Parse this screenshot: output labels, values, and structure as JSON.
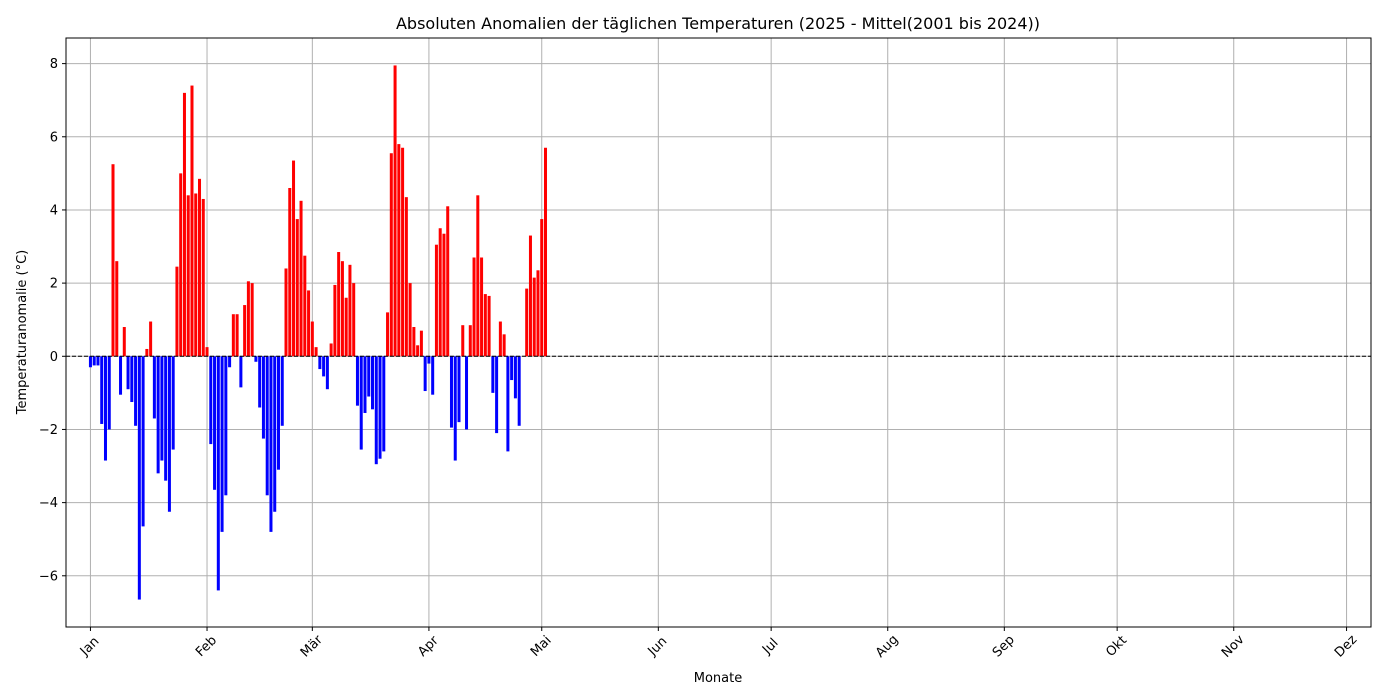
{
  "chart_data": {
    "type": "bar",
    "title": "Absoluten Anomalien der täglichen Temperaturen (2025 - Mittel(2001 bis 2024))",
    "xlabel": "Monate",
    "ylabel": "Temperaturanomalie (°C)",
    "ylim": [
      -7.4,
      8.7
    ],
    "xlim_day": [
      -6.5,
      340.5
    ],
    "yticks": [
      -6,
      -4,
      -2,
      0,
      2,
      4,
      6,
      8
    ],
    "ytick_labels": [
      "−6",
      "−4",
      "−2",
      "0",
      "2",
      "4",
      "6",
      "8"
    ],
    "month_ticks": [
      {
        "label": "Jan",
        "day": 0
      },
      {
        "label": "Feb",
        "day": 31
      },
      {
        "label": "Mär",
        "day": 59
      },
      {
        "label": "Apr",
        "day": 90
      },
      {
        "label": "Mai",
        "day": 120
      },
      {
        "label": "Jun",
        "day": 151
      },
      {
        "label": "Jul",
        "day": 181
      },
      {
        "label": "Aug",
        "day": 212
      },
      {
        "label": "Sep",
        "day": 243
      },
      {
        "label": "Okt",
        "day": 273
      },
      {
        "label": "Nov",
        "day": 304
      },
      {
        "label": "Dez",
        "day": 334
      }
    ],
    "grid": true,
    "zero_line": "dashed",
    "colors": {
      "positive": "#ff0000",
      "negative": "#0000ff"
    },
    "values": [
      -0.3,
      -0.25,
      -0.25,
      -1.85,
      -2.85,
      -2.0,
      5.25,
      2.6,
      -1.05,
      0.8,
      -0.9,
      -1.25,
      -1.9,
      -6.65,
      -4.65,
      0.2,
      0.95,
      -1.7,
      -3.2,
      -2.85,
      -3.4,
      -4.25,
      -2.55,
      2.45,
      5.0,
      7.2,
      4.4,
      7.4,
      4.45,
      4.85,
      4.3,
      0.25,
      -2.4,
      -3.65,
      -6.4,
      -4.8,
      -3.8,
      -0.3,
      1.15,
      1.15,
      -0.85,
      1.4,
      2.05,
      2.0,
      -0.15,
      -1.4,
      -2.25,
      -3.8,
      -4.8,
      -4.25,
      -3.1,
      -1.9,
      2.4,
      4.6,
      5.35,
      3.75,
      4.25,
      2.75,
      1.8,
      0.95,
      0.25,
      -0.35,
      -0.55,
      -0.9,
      0.35,
      1.95,
      2.85,
      2.6,
      1.6,
      2.5,
      2.0,
      -1.35,
      -2.55,
      -1.55,
      -1.1,
      -1.45,
      -2.95,
      -2.8,
      -2.6,
      1.2,
      5.55,
      7.95,
      5.8,
      5.7,
      4.35,
      2.0,
      0.8,
      0.3,
      0.7,
      -0.95,
      -0.2,
      -1.05,
      3.05,
      3.5,
      3.35,
      4.1,
      -1.95,
      -2.85,
      -1.8,
      0.85,
      -2.0,
      0.85,
      2.7,
      4.4,
      2.7,
      1.7,
      1.65,
      -1.0,
      -2.1,
      0.95,
      0.6,
      -2.6,
      -0.65,
      -1.15,
      -1.9,
      0.0,
      1.85,
      3.3,
      2.15,
      2.35,
      3.75,
      5.7
    ]
  }
}
